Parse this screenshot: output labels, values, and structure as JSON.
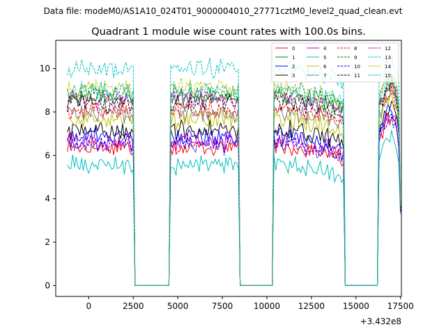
{
  "chart_data": {
    "type": "line",
    "suptitle": "Data file: modeM0/AS1A10_024T01_9000004010_27771cztM0_level2_quad_clean.evt",
    "title": "Quadrant 1 module wise count rates with 100.0s bins.",
    "xlabel": "",
    "ylabel": "",
    "x_offset_label": "+3.432e8",
    "xlim": [
      -1850,
      17550
    ],
    "ylim": [
      -0.5,
      11.3
    ],
    "xticks": [
      0,
      2500,
      5000,
      7500,
      10000,
      12500,
      15000,
      17500
    ],
    "xtick_labels": [
      "0",
      "2500",
      "5000",
      "7500",
      "10000",
      "12500",
      "15000",
      "17500"
    ],
    "yticks": [
      0,
      2,
      4,
      6,
      8,
      10
    ],
    "ytick_labels": [
      "0",
      "2",
      "4",
      "6",
      "8",
      "10"
    ],
    "gap_segments": [
      [
        2600,
        4500
      ],
      [
        8500,
        10300
      ],
      [
        14400,
        16200
      ]
    ],
    "data_segments": [
      {
        "start": -1200,
        "end": 2500,
        "values": [
          7.6,
          7.7,
          7.5,
          7.8,
          7.6,
          7.7,
          7.5,
          7.6,
          7.8,
          7.6,
          7.7,
          7.5,
          7.6,
          7.7,
          7.8,
          7.6,
          7.7,
          7.5,
          7.6,
          7.7,
          7.6,
          7.8,
          7.5,
          7.6,
          7.7,
          7.6,
          7.5,
          7.7,
          7.6,
          7.8,
          7.6,
          7.7,
          7.5,
          7.6,
          7.7,
          7.6,
          7.5,
          7.6
        ]
      },
      {
        "start": 4600,
        "end": 8400,
        "values": [
          7.7,
          7.6,
          7.8,
          7.5,
          7.7,
          7.6,
          7.8,
          7.6,
          7.5,
          7.7,
          7.6,
          7.8,
          7.7,
          7.5,
          7.6,
          7.7,
          7.6,
          7.8,
          7.5,
          7.6,
          7.7,
          7.6,
          7.8,
          7.6,
          7.5,
          7.7,
          7.6,
          7.7,
          7.8,
          7.6,
          7.5,
          7.7,
          7.6,
          7.8,
          7.6,
          7.7,
          7.5,
          7.6,
          7.7
        ]
      },
      {
        "start": 10400,
        "end": 14300,
        "values": [
          7.8,
          7.7,
          7.6,
          7.8,
          7.7,
          7.5,
          7.6,
          7.7,
          7.6,
          7.8,
          7.5,
          7.6,
          7.7,
          7.6,
          7.5,
          7.6,
          7.7,
          7.5,
          7.4,
          7.6,
          7.5,
          7.4,
          7.6,
          7.5,
          7.4,
          7.3,
          7.5,
          7.4,
          7.3,
          7.5,
          7.4,
          7.2,
          7.3,
          7.4,
          7.2,
          7.1,
          7.2,
          7.1,
          7.0,
          7.1
        ]
      },
      {
        "start": 16300,
        "end": 17400,
        "values": [
          7.6,
          7.8,
          8.0,
          8.2,
          8.4,
          8.6,
          8.5,
          8.7,
          8.4,
          8.3,
          8.0,
          7.4
        ]
      }
    ],
    "end_point": {
      "x": 17500,
      "y": 3.5
    },
    "series": [
      {
        "name": "0",
        "color": "#ff0000",
        "dash": "solid",
        "offset": -1.25
      },
      {
        "name": "1",
        "color": "#008000",
        "dash": "solid",
        "offset": 1.05
      },
      {
        "name": "2",
        "color": "#0000ff",
        "dash": "solid",
        "offset": -0.75
      },
      {
        "name": "3",
        "color": "#000000",
        "dash": "solid",
        "offset": -0.5
      },
      {
        "name": "4",
        "color": "#bf00bf",
        "dash": "solid",
        "offset": -1.0
      },
      {
        "name": "5",
        "color": "#00bfbf",
        "dash": "solid",
        "offset": -2.1
      },
      {
        "name": "6",
        "color": "#bfbf00",
        "dash": "solid",
        "offset": 0.0
      },
      {
        "name": "7",
        "color": "#808080",
        "dash": "solid",
        "offset": 0.3
      },
      {
        "name": "8",
        "color": "#ff0000",
        "dash": "dashed",
        "offset": 0.45
      },
      {
        "name": "9",
        "color": "#008000",
        "dash": "dashed",
        "offset": 1.2
      },
      {
        "name": "10",
        "color": "#0000ff",
        "dash": "dashed",
        "offset": -1.15
      },
      {
        "name": "11",
        "color": "#000000",
        "dash": "dashed",
        "offset": 0.75
      },
      {
        "name": "12",
        "color": "#bf00bf",
        "dash": "dashed",
        "offset": 0.95
      },
      {
        "name": "13",
        "color": "#00bfbf",
        "dash": "dashed",
        "offset": 2.35
      },
      {
        "name": "14",
        "color": "#bfbf00",
        "dash": "dashed",
        "offset": 1.5
      },
      {
        "name": "15",
        "color": "#00bfbf",
        "dash": "dashed",
        "offset": 1.35
      }
    ],
    "legend_position": "top-right",
    "grid": false
  }
}
